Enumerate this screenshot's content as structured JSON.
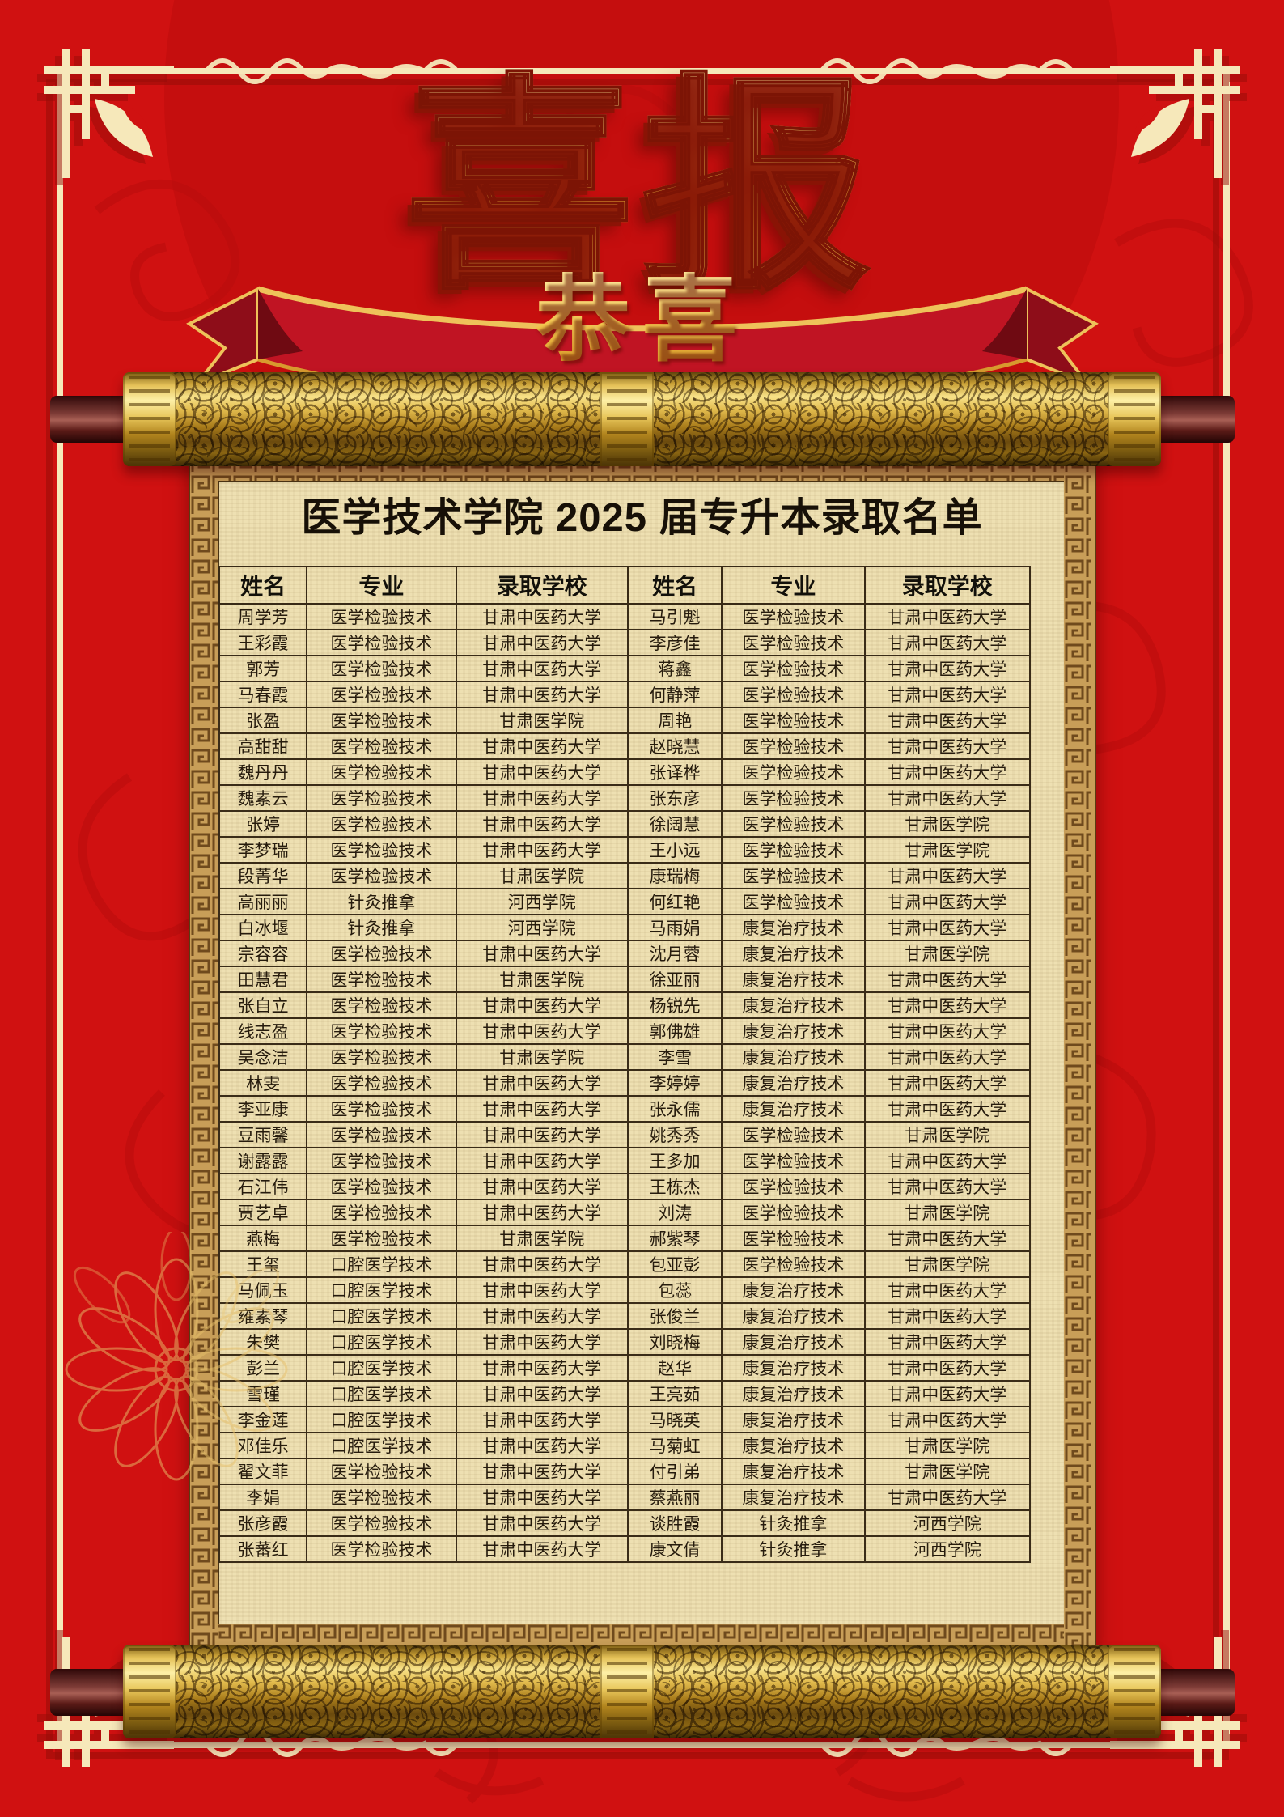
{
  "poster": {
    "main_title": "喜报",
    "ribbon_text": "恭喜",
    "list_title": "医学技术学院 2025 届专升本录取名单"
  },
  "table": {
    "headers": [
      "姓名",
      "专业",
      "录取学校",
      "姓名",
      "专业",
      "录取学校"
    ],
    "rows": [
      [
        "周学芳",
        "医学检验技术",
        "甘肃中医药大学",
        "马引魁",
        "医学检验技术",
        "甘肃中医药大学"
      ],
      [
        "王彩霞",
        "医学检验技术",
        "甘肃中医药大学",
        "李彦佳",
        "医学检验技术",
        "甘肃中医药大学"
      ],
      [
        "郭芳",
        "医学检验技术",
        "甘肃中医药大学",
        "蒋鑫",
        "医学检验技术",
        "甘肃中医药大学"
      ],
      [
        "马春霞",
        "医学检验技术",
        "甘肃中医药大学",
        "何静萍",
        "医学检验技术",
        "甘肃中医药大学"
      ],
      [
        "张盈",
        "医学检验技术",
        "甘肃医学院",
        "周艳",
        "医学检验技术",
        "甘肃中医药大学"
      ],
      [
        "高甜甜",
        "医学检验技术",
        "甘肃中医药大学",
        "赵晓慧",
        "医学检验技术",
        "甘肃中医药大学"
      ],
      [
        "魏丹丹",
        "医学检验技术",
        "甘肃中医药大学",
        "张译桦",
        "医学检验技术",
        "甘肃中医药大学"
      ],
      [
        "魏素云",
        "医学检验技术",
        "甘肃中医药大学",
        "张东彦",
        "医学检验技术",
        "甘肃中医药大学"
      ],
      [
        "张婷",
        "医学检验技术",
        "甘肃中医药大学",
        "徐阔慧",
        "医学检验技术",
        "甘肃医学院"
      ],
      [
        "李梦瑞",
        "医学检验技术",
        "甘肃中医药大学",
        "王小远",
        "医学检验技术",
        "甘肃医学院"
      ],
      [
        "段菁华",
        "医学检验技术",
        "甘肃医学院",
        "康瑞梅",
        "医学检验技术",
        "甘肃中医药大学"
      ],
      [
        "高丽丽",
        "针灸推拿",
        "河西学院",
        "何红艳",
        "医学检验技术",
        "甘肃中医药大学"
      ],
      [
        "白冰堰",
        "针灸推拿",
        "河西学院",
        "马雨娟",
        "康复治疗技术",
        "甘肃中医药大学"
      ],
      [
        "宗容容",
        "医学检验技术",
        "甘肃中医药大学",
        "沈月蓉",
        "康复治疗技术",
        "甘肃医学院"
      ],
      [
        "田慧君",
        "医学检验技术",
        "甘肃医学院",
        "徐亚丽",
        "康复治疗技术",
        "甘肃中医药大学"
      ],
      [
        "张自立",
        "医学检验技术",
        "甘肃中医药大学",
        "杨锐先",
        "康复治疗技术",
        "甘肃中医药大学"
      ],
      [
        "线志盈",
        "医学检验技术",
        "甘肃中医药大学",
        "郭佛雄",
        "康复治疗技术",
        "甘肃中医药大学"
      ],
      [
        "吴念洁",
        "医学检验技术",
        "甘肃医学院",
        "李雪",
        "康复治疗技术",
        "甘肃中医药大学"
      ],
      [
        "林雯",
        "医学检验技术",
        "甘肃中医药大学",
        "李婷婷",
        "康复治疗技术",
        "甘肃中医药大学"
      ],
      [
        "李亚康",
        "医学检验技术",
        "甘肃中医药大学",
        "张永儒",
        "康复治疗技术",
        "甘肃中医药大学"
      ],
      [
        "豆雨馨",
        "医学检验技术",
        "甘肃中医药大学",
        "姚秀秀",
        "医学检验技术",
        "甘肃医学院"
      ],
      [
        "谢露露",
        "医学检验技术",
        "甘肃中医药大学",
        "王多加",
        "医学检验技术",
        "甘肃中医药大学"
      ],
      [
        "石江伟",
        "医学检验技术",
        "甘肃中医药大学",
        "王栋杰",
        "医学检验技术",
        "甘肃中医药大学"
      ],
      [
        "贾艺卓",
        "医学检验技术",
        "甘肃中医药大学",
        "刘涛",
        "医学检验技术",
        "甘肃医学院"
      ],
      [
        "燕梅",
        "医学检验技术",
        "甘肃医学院",
        "郝紫琴",
        "医学检验技术",
        "甘肃中医药大学"
      ],
      [
        "王玺",
        "口腔医学技术",
        "甘肃中医药大学",
        "包亚彭",
        "医学检验技术",
        "甘肃医学院"
      ],
      [
        "马佩玉",
        "口腔医学技术",
        "甘肃中医药大学",
        "包蕊",
        "康复治疗技术",
        "甘肃中医药大学"
      ],
      [
        "雍素琴",
        "口腔医学技术",
        "甘肃中医药大学",
        "张俊兰",
        "康复治疗技术",
        "甘肃中医药大学"
      ],
      [
        "朱樊",
        "口腔医学技术",
        "甘肃中医药大学",
        "刘晓梅",
        "康复治疗技术",
        "甘肃中医药大学"
      ],
      [
        "彭兰",
        "口腔医学技术",
        "甘肃中医药大学",
        "赵华",
        "康复治疗技术",
        "甘肃中医药大学"
      ],
      [
        "雪瑾",
        "口腔医学技术",
        "甘肃中医药大学",
        "王亮茹",
        "康复治疗技术",
        "甘肃中医药大学"
      ],
      [
        "李金莲",
        "口腔医学技术",
        "甘肃中医药大学",
        "马晓英",
        "康复治疗技术",
        "甘肃中医药大学"
      ],
      [
        "邓佳乐",
        "口腔医学技术",
        "甘肃中医药大学",
        "马菊虹",
        "康复治疗技术",
        "甘肃医学院"
      ],
      [
        "翟文菲",
        "医学检验技术",
        "甘肃中医药大学",
        "付引弟",
        "康复治疗技术",
        "甘肃医学院"
      ],
      [
        "李娟",
        "医学检验技术",
        "甘肃中医药大学",
        "蔡燕丽",
        "康复治疗技术",
        "甘肃中医药大学"
      ],
      [
        "张彦霞",
        "医学检验技术",
        "甘肃中医药大学",
        "谈胜霞",
        "针灸推拿",
        "河西学院"
      ],
      [
        "张蕃红",
        "医学检验技术",
        "甘肃中医药大学",
        "康文倩",
        "针灸推拿",
        "河西学院"
      ]
    ]
  },
  "colors": {
    "background_red": "#d01111",
    "pattern_red": "#b80d0d",
    "frame_gold": "#f6e8ba",
    "banner_gold": "#f8cd4a",
    "banner_outline_red": "#7c1405",
    "ribbon_red": "#c01423",
    "ribbon_edge_gold": "#eec25a",
    "scroll_gold": "#d6ab3a",
    "rod_maroon": "#5b1b17",
    "brocade_border": "#c89e58",
    "parchment": "#eee0b2",
    "table_line": "#3a2c18",
    "table_text": "#261b0d"
  }
}
